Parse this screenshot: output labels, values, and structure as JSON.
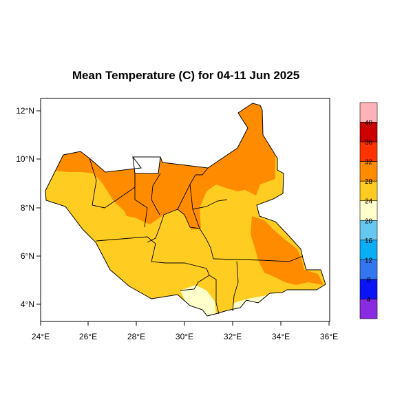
{
  "title": "Mean Temperature (C) for 04-11 Jun 2025",
  "map": {
    "x_ticks": [
      "24°E",
      "26°E",
      "28°E",
      "30°E",
      "32°E",
      "34°E",
      "36°E"
    ],
    "y_ticks": [
      "4°N",
      "6°N",
      "8°N",
      "10°N",
      "12°N"
    ],
    "lon_range": [
      24,
      36
    ],
    "lat_range": [
      3.3,
      12.3
    ]
  },
  "legend": {
    "labels": [
      "40",
      "36",
      "32",
      "28",
      "24",
      "20",
      "16",
      "12",
      "8",
      "4"
    ],
    "colors": [
      "#ffb3b8",
      "#cc0000",
      "#ff3300",
      "#ff8c00",
      "#ffcc22",
      "#ffffcc",
      "#66c8f0",
      "#0aaef5",
      "#3377f0",
      "#0a14f5",
      "#8a2be2"
    ]
  },
  "colors": {
    "hot": "#ff8c00",
    "warm": "#ffcc22",
    "mild": "#ffffcc",
    "cool": "#66c8f0"
  }
}
